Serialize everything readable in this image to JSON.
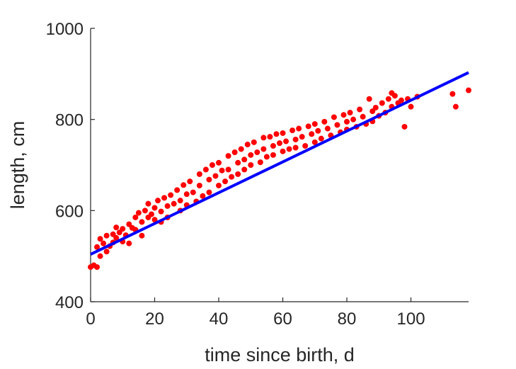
{
  "chart_data": {
    "type": "scatter",
    "xlabel": "time since birth, d",
    "ylabel": "length, cm",
    "xlim": [
      0,
      118
    ],
    "ylim": [
      400,
      1000
    ],
    "xticks": [
      0,
      20,
      40,
      60,
      80,
      100
    ],
    "yticks": [
      400,
      600,
      800,
      1000
    ],
    "grid": false,
    "colors": {
      "points": "#ff0000",
      "fit": "#0000ff",
      "axis": "#262626"
    },
    "fit_line": {
      "x": [
        0,
        118
      ],
      "y": [
        504,
        903
      ]
    },
    "points": [
      [
        0,
        476
      ],
      [
        1,
        480
      ],
      [
        2,
        476
      ],
      [
        2,
        520
      ],
      [
        3,
        500
      ],
      [
        3,
        538
      ],
      [
        4,
        528
      ],
      [
        5,
        545
      ],
      [
        5,
        510
      ],
      [
        6,
        522
      ],
      [
        7,
        548
      ],
      [
        7,
        530
      ],
      [
        8,
        563
      ],
      [
        8,
        540
      ],
      [
        9,
        552
      ],
      [
        10,
        532
      ],
      [
        10,
        560
      ],
      [
        11,
        546
      ],
      [
        12,
        570
      ],
      [
        12,
        528
      ],
      [
        13,
        562
      ],
      [
        14,
        585
      ],
      [
        14,
        558
      ],
      [
        15,
        595
      ],
      [
        16,
        575
      ],
      [
        16,
        545
      ],
      [
        17,
        600
      ],
      [
        18,
        585
      ],
      [
        18,
        615
      ],
      [
        19,
        592
      ],
      [
        20,
        606
      ],
      [
        20,
        580
      ],
      [
        21,
        622
      ],
      [
        22,
        598
      ],
      [
        22,
        575
      ],
      [
        23,
        628
      ],
      [
        24,
        610
      ],
      [
        24,
        585
      ],
      [
        25,
        634
      ],
      [
        26,
        615
      ],
      [
        27,
        645
      ],
      [
        28,
        622
      ],
      [
        28,
        600
      ],
      [
        29,
        656
      ],
      [
        30,
        636
      ],
      [
        30,
        612
      ],
      [
        31,
        664
      ],
      [
        32,
        640
      ],
      [
        33,
        620
      ],
      [
        34,
        680
      ],
      [
        34,
        655
      ],
      [
        35,
        632
      ],
      [
        36,
        690
      ],
      [
        37,
        668
      ],
      [
        37,
        640
      ],
      [
        38,
        700
      ],
      [
        39,
        676
      ],
      [
        40,
        655
      ],
      [
        40,
        705
      ],
      [
        41,
        688
      ],
      [
        42,
        664
      ],
      [
        43,
        720
      ],
      [
        43,
        690
      ],
      [
        44,
        674
      ],
      [
        45,
        728
      ],
      [
        46,
        705
      ],
      [
        46,
        680
      ],
      [
        47,
        735
      ],
      [
        48,
        712
      ],
      [
        48,
        690
      ],
      [
        49,
        745
      ],
      [
        50,
        722
      ],
      [
        50,
        700
      ],
      [
        51,
        750
      ],
      [
        52,
        728
      ],
      [
        53,
        706
      ],
      [
        54,
        760
      ],
      [
        54,
        735
      ],
      [
        55,
        718
      ],
      [
        56,
        762
      ],
      [
        57,
        742
      ],
      [
        57,
        722
      ],
      [
        58,
        768
      ],
      [
        59,
        748
      ],
      [
        60,
        730
      ],
      [
        60,
        770
      ],
      [
        61,
        752
      ],
      [
        62,
        735
      ],
      [
        63,
        776
      ],
      [
        64,
        756
      ],
      [
        64,
        738
      ],
      [
        65,
        780
      ],
      [
        66,
        762
      ],
      [
        67,
        742
      ],
      [
        68,
        785
      ],
      [
        69,
        768
      ],
      [
        70,
        750
      ],
      [
        70,
        790
      ],
      [
        71,
        775
      ],
      [
        72,
        758
      ],
      [
        73,
        795
      ],
      [
        74,
        780
      ],
      [
        75,
        765
      ],
      [
        76,
        805
      ],
      [
        77,
        788
      ],
      [
        78,
        772
      ],
      [
        79,
        810
      ],
      [
        80,
        795
      ],
      [
        80,
        778
      ],
      [
        81,
        815
      ],
      [
        82,
        800
      ],
      [
        83,
        784
      ],
      [
        84,
        822
      ],
      [
        85,
        806
      ],
      [
        86,
        790
      ],
      [
        87,
        845
      ],
      [
        88,
        818
      ],
      [
        88,
        796
      ],
      [
        89,
        826
      ],
      [
        90,
        808
      ],
      [
        91,
        836
      ],
      [
        92,
        815
      ],
      [
        93,
        845
      ],
      [
        94,
        858
      ],
      [
        94,
        828
      ],
      [
        95,
        852
      ],
      [
        96,
        836
      ],
      [
        97,
        842
      ],
      [
        98,
        784
      ],
      [
        99,
        845
      ],
      [
        100,
        828
      ],
      [
        102,
        850
      ],
      [
        113,
        856
      ],
      [
        114,
        828
      ],
      [
        118,
        864
      ]
    ]
  }
}
